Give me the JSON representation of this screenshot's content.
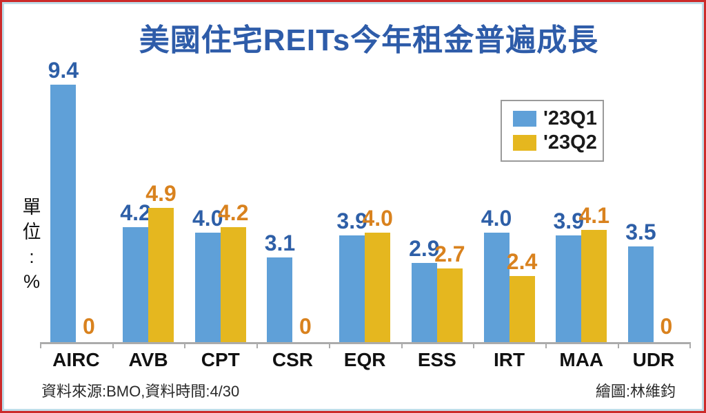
{
  "title": "美國住宅REITs今年租金普遍成長",
  "unit_label": "單位:%",
  "legend": {
    "items": [
      {
        "label": "'23Q1",
        "color": "#5fa0d8"
      },
      {
        "label": "'23Q2",
        "color": "#e5b71f"
      }
    ]
  },
  "footer": {
    "source": "資料來源:BMO,資料時間:4/30",
    "credit": "繪圖:林維鈞"
  },
  "colors": {
    "outer_border": "#cc2a2a",
    "inner_border": "#bfdde9",
    "title": "#2e5ca9",
    "q1_bar": "#5fa0d8",
    "q2_bar": "#e5b71f",
    "q1_value_label": "#2e5fa7",
    "q2_value_label": "#d9821e",
    "axis": "#ababab"
  },
  "chart_data": {
    "type": "bar",
    "title": "美國住宅REITs今年租金普遍成長",
    "categories": [
      "AIRC",
      "AVB",
      "CPT",
      "CSR",
      "EQR",
      "ESS",
      "IRT",
      "MAA",
      "UDR"
    ],
    "series": [
      {
        "name": "'23Q1",
        "color": "#5fa0d8",
        "label_color": "#2e5fa7",
        "values": [
          9.4,
          4.2,
          4.0,
          3.1,
          3.9,
          2.9,
          4.0,
          3.9,
          3.5
        ]
      },
      {
        "name": "'23Q2",
        "color": "#e5b71f",
        "label_color": "#d9821e",
        "values": [
          0,
          4.9,
          4.2,
          0,
          4.0,
          2.7,
          2.4,
          4.1,
          0
        ]
      }
    ],
    "xlabel": "",
    "ylabel": "單位:%",
    "ylim": [
      0,
      10
    ],
    "grid": false,
    "data_labels": true,
    "legend_position": "top-right",
    "zero_shown_as_label_only": true
  }
}
